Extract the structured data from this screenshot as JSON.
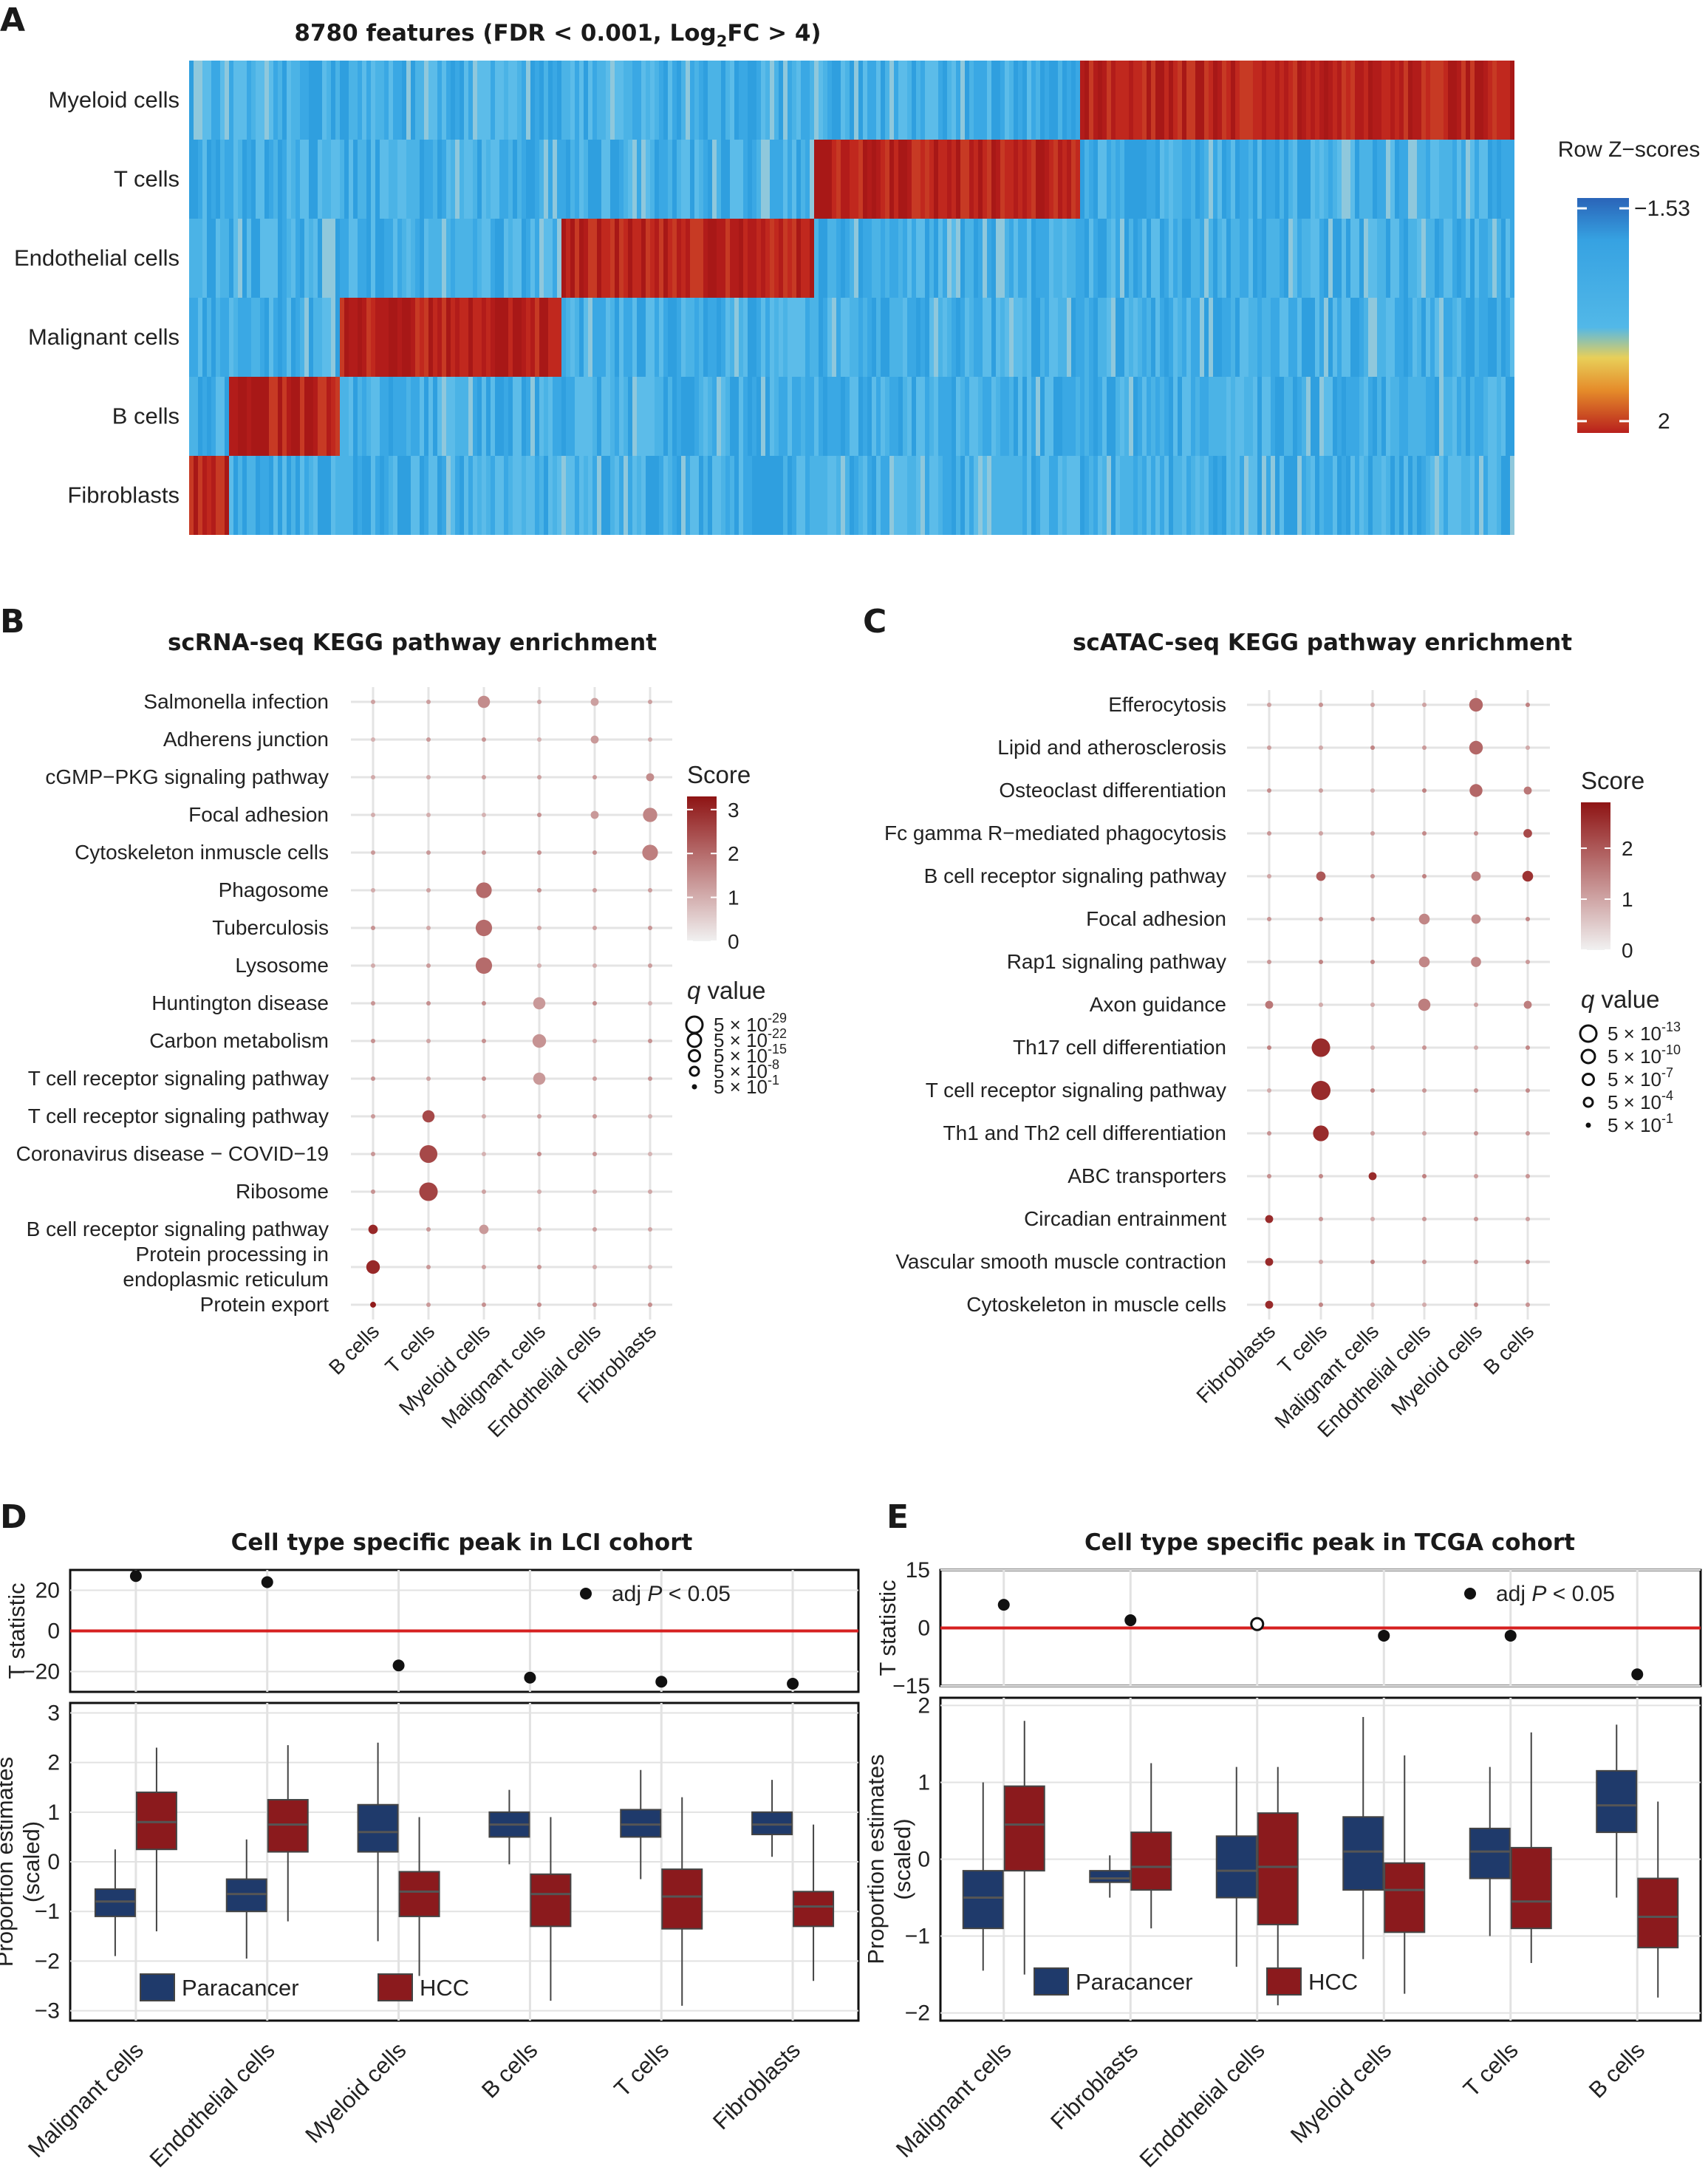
{
  "panel_letters": [
    "A",
    "B",
    "C",
    "D",
    "E"
  ],
  "colors": {
    "heat_low": "#2e9fe0",
    "heat_high": "#b8201d",
    "dot": "#b02626",
    "paracancer": "#1f3a6b",
    "hcc": "#8b1a1d",
    "zero_line": "#d62020"
  },
  "chart_data": [
    {
      "id": "A",
      "type": "heatmap",
      "title_parts": {
        "pre": "8780 features (FDR < 0.001, Log",
        "sub": "2",
        "post": "FC > 4)"
      },
      "rows": [
        "Myeloid cells",
        "T cells",
        "Endothelial cells",
        "Malignant cells",
        "B cells",
        "Fibroblasts"
      ],
      "high_blocks": [
        {
          "row": "Myeloid cells",
          "from": 0.672,
          "to": 1.0
        },
        {
          "row": "T cells",
          "from": 0.47,
          "to": 0.672
        },
        {
          "row": "Endothelial cells",
          "from": 0.279,
          "to": 0.47
        },
        {
          "row": "Malignant cells",
          "from": 0.113,
          "to": 0.279
        },
        {
          "row": "B cells",
          "from": 0.027,
          "to": 0.113
        },
        {
          "row": "Fibroblasts",
          "from": 0.0,
          "to": 0.027
        }
      ],
      "legend": {
        "title": "Row Z−scores",
        "max_label": "−1.53",
        "min_label": "2"
      }
    },
    {
      "id": "B",
      "type": "scatter",
      "title": "scRNA-seq KEGG pathway enrichment",
      "x_categories": [
        "B cells",
        "T cells",
        "Myeloid cells",
        "Malignant cells",
        "Endothelial cells",
        "Fibroblasts"
      ],
      "y_categories": [
        "Salmonella infection",
        "Adherens junction",
        "cGMP−PKG signaling pathway",
        "Focal adhesion",
        "Cytoskeleton inmuscle cells",
        "Phagosome",
        "Tuberculosis",
        "Lysosome",
        "Huntington disease",
        "Carbon metabolism",
        "T cell receptor signaling pathway",
        "T cell receptor signaling pathway",
        "Coronavirus disease − COVID−19",
        "Ribosome",
        "B cell receptor signaling pathway",
        "Protein processing in\nendoplasmic reticulum",
        "Protein export"
      ],
      "highlights": [
        {
          "y": 0,
          "x": 2,
          "score": 1.5,
          "q": 0.5
        },
        {
          "y": 0,
          "x": 4,
          "score": 1.2,
          "q": 0.8
        },
        {
          "y": 1,
          "x": 4,
          "score": 1.3,
          "q": 0.8
        },
        {
          "y": 2,
          "x": 5,
          "score": 1.5,
          "q": 0.8
        },
        {
          "y": 3,
          "x": 4,
          "score": 1.3,
          "q": 0.8
        },
        {
          "y": 3,
          "x": 5,
          "score": 1.6,
          "q": 0.35
        },
        {
          "y": 4,
          "x": 5,
          "score": 1.7,
          "q": 0.25
        },
        {
          "y": 5,
          "x": 2,
          "score": 2.0,
          "q": 0.25
        },
        {
          "y": 6,
          "x": 2,
          "score": 2.0,
          "q": 0.2
        },
        {
          "y": 7,
          "x": 2,
          "score": 2.0,
          "q": 0.2
        },
        {
          "y": 8,
          "x": 3,
          "score": 1.3,
          "q": 0.5
        },
        {
          "y": 9,
          "x": 3,
          "score": 1.4,
          "q": 0.4
        },
        {
          "y": 10,
          "x": 3,
          "score": 1.3,
          "q": 0.5
        },
        {
          "y": 11,
          "x": 1,
          "score": 2.5,
          "q": 0.5
        },
        {
          "y": 12,
          "x": 1,
          "score": 2.5,
          "q": 0.1
        },
        {
          "y": 13,
          "x": 1,
          "score": 2.6,
          "q": 0.05
        },
        {
          "y": 14,
          "x": 0,
          "score": 3.0,
          "q": 0.7
        },
        {
          "y": 14,
          "x": 2,
          "score": 1.3,
          "q": 0.7
        },
        {
          "y": 15,
          "x": 0,
          "score": 3.0,
          "q": 0.4
        },
        {
          "y": 16,
          "x": 0,
          "score": 3.2,
          "q": 0.95
        }
      ],
      "legend_score": {
        "title": "Score",
        "ticks": [
          "3",
          "2",
          "1",
          "0"
        ],
        "range": [
          0,
          3.3
        ]
      },
      "legend_q": {
        "title": "q",
        "title_rest": " value",
        "entries": [
          {
            "base": "5 × 10",
            "exp": "-29"
          },
          {
            "base": "5 × 10",
            "exp": "-22"
          },
          {
            "base": "5 × 10",
            "exp": "-15"
          },
          {
            "base": "5 × 10",
            "exp": "-8"
          },
          {
            "base": "5 × 10",
            "exp": "-1"
          }
        ]
      }
    },
    {
      "id": "C",
      "type": "scatter",
      "title": "scATAC-seq KEGG pathway enrichment",
      "x_categories": [
        "Fibroblasts",
        "T cells",
        "Malignant cells",
        "Endothelial cells",
        "Myeloid cells",
        "B cells"
      ],
      "y_categories": [
        "Efferocytosis",
        "Lipid and atherosclerosis",
        "Osteoclast differentiation",
        "Fc gamma R−mediated phagocytosis",
        "B cell receptor signaling pathway",
        "Focal adhesion",
        "Rap1 signaling pathway",
        "Axon guidance",
        "Th17 cell differentiation",
        "T cell receptor signaling pathway",
        "Th1 and Th2 cell differentiation",
        "ABC transporters",
        "Circadian entrainment",
        "Vascular smooth muscle contraction",
        "Cytoskeleton in muscle cells"
      ],
      "highlights": [
        {
          "y": 0,
          "x": 4,
          "score": 1.8,
          "q": 0.4
        },
        {
          "y": 1,
          "x": 4,
          "score": 1.8,
          "q": 0.4
        },
        {
          "y": 2,
          "x": 4,
          "score": 1.8,
          "q": 0.45
        },
        {
          "y": 2,
          "x": 5,
          "score": 1.6,
          "q": 0.8
        },
        {
          "y": 3,
          "x": 5,
          "score": 2.2,
          "q": 0.75
        },
        {
          "y": 4,
          "x": 1,
          "score": 2.0,
          "q": 0.7
        },
        {
          "y": 4,
          "x": 4,
          "score": 1.5,
          "q": 0.7
        },
        {
          "y": 4,
          "x": 5,
          "score": 2.5,
          "q": 0.6
        },
        {
          "y": 5,
          "x": 3,
          "score": 1.4,
          "q": 0.6
        },
        {
          "y": 5,
          "x": 4,
          "score": 1.4,
          "q": 0.7
        },
        {
          "y": 6,
          "x": 3,
          "score": 1.4,
          "q": 0.6
        },
        {
          "y": 6,
          "x": 4,
          "score": 1.4,
          "q": 0.65
        },
        {
          "y": 7,
          "x": 0,
          "score": 1.6,
          "q": 0.8
        },
        {
          "y": 7,
          "x": 3,
          "score": 1.5,
          "q": 0.5
        },
        {
          "y": 7,
          "x": 5,
          "score": 1.5,
          "q": 0.8
        },
        {
          "y": 8,
          "x": 1,
          "score": 2.6,
          "q": 0.05
        },
        {
          "y": 9,
          "x": 1,
          "score": 2.6,
          "q": 0.0
        },
        {
          "y": 10,
          "x": 1,
          "score": 2.6,
          "q": 0.25
        },
        {
          "y": 11,
          "x": 2,
          "score": 2.6,
          "q": 0.8
        },
        {
          "y": 12,
          "x": 0,
          "score": 2.6,
          "q": 0.8
        },
        {
          "y": 13,
          "x": 0,
          "score": 2.6,
          "q": 0.8
        },
        {
          "y": 14,
          "x": 0,
          "score": 2.6,
          "q": 0.8
        }
      ],
      "legend_score": {
        "title": "Score",
        "ticks": [
          "2",
          "1",
          "0"
        ],
        "range": [
          0,
          2.9
        ]
      },
      "legend_q": {
        "title": "q",
        "title_rest": " value",
        "entries": [
          {
            "base": "5 × 10",
            "exp": "-13"
          },
          {
            "base": "5 × 10",
            "exp": "-10"
          },
          {
            "base": "5 × 10",
            "exp": "-7"
          },
          {
            "base": "5 × 10",
            "exp": "-4"
          },
          {
            "base": "5 × 10",
            "exp": "-1"
          }
        ]
      }
    },
    {
      "id": "D",
      "type": "box",
      "title": "Cell type specific peak in LCI cohort",
      "categories": [
        "Malignant cells",
        "Endothelial cells",
        "Myeloid cells",
        "B cells",
        "T cells",
        "Fibroblasts"
      ],
      "t_statistic": {
        "ylabel": "T statistic",
        "ylim": [
          -30,
          30
        ],
        "ticks": [
          "20",
          "0",
          "−20"
        ],
        "tick_values": [
          20,
          0,
          -20
        ],
        "values": [
          27,
          24,
          -17,
          -23,
          -25,
          -26
        ],
        "significant": [
          true,
          true,
          true,
          true,
          true,
          true
        ],
        "legend_pre": "adj ",
        "legend_p": "P",
        "legend_post": " < 0.05"
      },
      "box": {
        "ylabel_1": "Proportion estimates",
        "ylabel_2": "(scaled)",
        "ylim": [
          -3.2,
          3.2
        ],
        "ticks": [
          "3",
          "2",
          "1",
          "0",
          "−1",
          "−2",
          "−3"
        ],
        "tick_values": [
          3,
          2,
          1,
          0,
          -1,
          -2,
          -3
        ],
        "series": [
          {
            "name": "Paracancer",
            "stats": [
              [
                -1.9,
                -1.1,
                -0.8,
                -0.55,
                0.25
              ],
              [
                -1.95,
                -1.0,
                -0.65,
                -0.35,
                0.45
              ],
              [
                -1.6,
                0.2,
                0.6,
                1.15,
                2.4
              ],
              [
                -0.05,
                0.5,
                0.75,
                1.0,
                1.45
              ],
              [
                -0.35,
                0.5,
                0.75,
                1.05,
                1.85
              ],
              [
                0.1,
                0.55,
                0.75,
                1.0,
                1.65
              ]
            ]
          },
          {
            "name": "HCC",
            "stats": [
              [
                -1.4,
                0.25,
                0.8,
                1.4,
                2.3
              ],
              [
                -1.2,
                0.2,
                0.75,
                1.25,
                2.35
              ],
              [
                -2.3,
                -1.1,
                -0.6,
                -0.2,
                0.9
              ],
              [
                -2.8,
                -1.3,
                -0.65,
                -0.25,
                0.9
              ],
              [
                -2.9,
                -1.35,
                -0.7,
                -0.15,
                1.3
              ],
              [
                -2.4,
                -1.3,
                -0.9,
                -0.6,
                0.75
              ]
            ]
          }
        ]
      }
    },
    {
      "id": "E",
      "type": "box",
      "title": "Cell type specific peak in TCGA cohort",
      "categories": [
        "Malignant cells",
        "Fibroblasts",
        "Endothelial cells",
        "Myeloid cells",
        "T cells",
        "B cells"
      ],
      "t_statistic": {
        "ylabel": "T statistic",
        "ylim": [
          -15,
          15
        ],
        "ticks": [
          "15",
          "0",
          "−15"
        ],
        "tick_values": [
          15,
          0,
          -15
        ],
        "values": [
          6,
          2,
          1,
          -2,
          -2,
          -12
        ],
        "significant": [
          true,
          true,
          false,
          true,
          true,
          true
        ],
        "legend_pre": "adj ",
        "legend_p": "P",
        "legend_post": " < 0.05"
      },
      "box": {
        "ylabel_1": "Proportion estimates",
        "ylabel_2": "(scaled)",
        "ylim": [
          -2.1,
          2.1
        ],
        "ticks": [
          "2",
          "1",
          "0",
          "−1",
          "−2"
        ],
        "tick_values": [
          2,
          1,
          0,
          -1,
          -2
        ],
        "series": [
          {
            "name": "Paracancer",
            "stats": [
              [
                -1.45,
                -0.9,
                -0.5,
                -0.15,
                1.0
              ],
              [
                -0.5,
                -0.3,
                -0.25,
                -0.15,
                0.05
              ],
              [
                -1.4,
                -0.5,
                -0.15,
                0.3,
                1.2
              ],
              [
                -1.3,
                -0.4,
                0.1,
                0.55,
                1.85
              ],
              [
                -1.0,
                -0.25,
                0.1,
                0.4,
                1.2
              ],
              [
                -0.5,
                0.35,
                0.7,
                1.15,
                1.75
              ]
            ]
          },
          {
            "name": "HCC",
            "stats": [
              [
                -1.5,
                -0.15,
                0.45,
                0.95,
                1.8
              ],
              [
                -0.9,
                -0.4,
                -0.1,
                0.35,
                1.25
              ],
              [
                -1.9,
                -0.85,
                -0.1,
                0.6,
                1.2
              ],
              [
                -1.75,
                -0.95,
                -0.4,
                -0.05,
                1.35
              ],
              [
                -1.35,
                -0.9,
                -0.55,
                0.15,
                1.65
              ],
              [
                -1.8,
                -1.15,
                -0.75,
                -0.25,
                0.75
              ]
            ]
          }
        ]
      }
    }
  ]
}
